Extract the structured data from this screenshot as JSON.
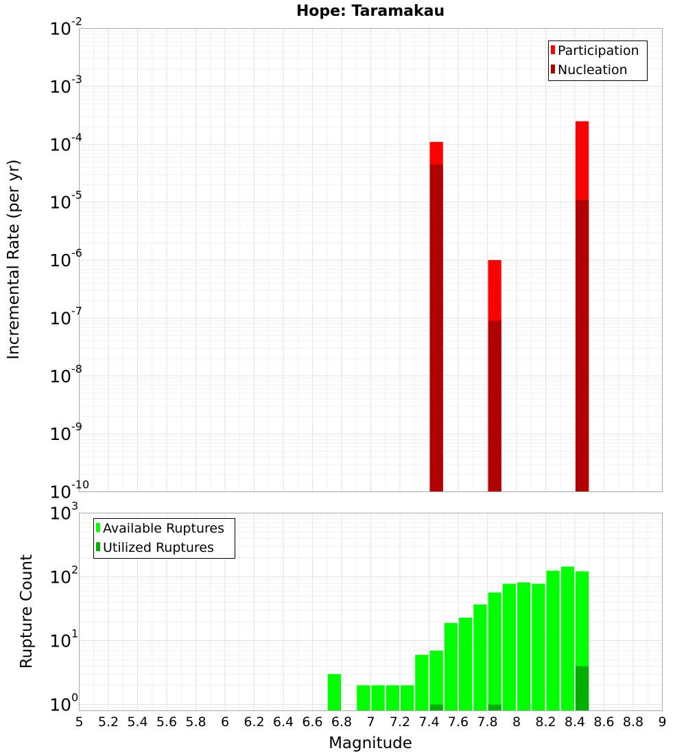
{
  "chart_data": [
    {
      "type": "bar",
      "title": "Hope: Taramakau",
      "xlabel": "Magnitude",
      "ylabel": "Incremental Rate (per yr)",
      "xlim": [
        5,
        9
      ],
      "ylim": [
        1e-10,
        0.01
      ],
      "yscale": "log",
      "grid": true,
      "legend_position": "top-right",
      "x_ticks": [
        "5",
        "5.2",
        "5.4",
        "5.6",
        "5.8",
        "6",
        "6.2",
        "6.4",
        "6.6",
        "6.8",
        "7",
        "7.2",
        "7.4",
        "7.6",
        "7.8",
        "8",
        "8.2",
        "8.4",
        "8.6",
        "8.8",
        "9"
      ],
      "y_ticks": [
        {
          "base": "10",
          "exp": "-10"
        },
        {
          "base": "10",
          "exp": "-9"
        },
        {
          "base": "10",
          "exp": "-8"
        },
        {
          "base": "10",
          "exp": "-7"
        },
        {
          "base": "10",
          "exp": "-6"
        },
        {
          "base": "10",
          "exp": "-5"
        },
        {
          "base": "10",
          "exp": "-4"
        },
        {
          "base": "10",
          "exp": "-3"
        },
        {
          "base": "10",
          "exp": "-2"
        }
      ],
      "bin_width": 0.1,
      "series": [
        {
          "name": "Participation",
          "color": "#ff0000",
          "x": [
            7.45,
            7.85,
            8.45
          ],
          "values": [
            0.00011,
            1e-06,
            0.00025
          ]
        },
        {
          "name": "Nucleation",
          "color": "#b00000",
          "x": [
            7.45,
            7.85,
            8.45
          ],
          "values": [
            4.5e-05,
            9e-08,
            1.1e-05
          ]
        }
      ]
    },
    {
      "type": "bar",
      "xlabel": "Magnitude",
      "ylabel": "Rupture Count",
      "xlim": [
        5,
        9
      ],
      "ylim": [
        0.8,
        1000
      ],
      "yscale": "log",
      "grid": true,
      "legend_position": "top-left",
      "x_ticks": [
        "5",
        "5.2",
        "5.4",
        "5.6",
        "5.8",
        "6",
        "6.2",
        "6.4",
        "6.6",
        "6.8",
        "7",
        "7.2",
        "7.4",
        "7.6",
        "7.8",
        "8",
        "8.2",
        "8.4",
        "8.6",
        "8.8",
        "9"
      ],
      "y_ticks": [
        {
          "base": "10",
          "exp": "0"
        },
        {
          "base": "10",
          "exp": "1"
        },
        {
          "base": "10",
          "exp": "2"
        },
        {
          "base": "10",
          "exp": "3"
        }
      ],
      "bin_width": 0.1,
      "series": [
        {
          "name": "Available Ruptures",
          "color": "#00ff00",
          "x": [
            6.75,
            6.95,
            7.05,
            7.15,
            7.25,
            7.35,
            7.45,
            7.55,
            7.65,
            7.75,
            7.85,
            7.95,
            8.05,
            8.15,
            8.25,
            8.35,
            8.45
          ],
          "values": [
            3,
            2,
            2,
            2,
            2,
            6,
            7,
            19,
            23,
            37,
            57,
            78,
            82,
            78,
            125,
            145,
            122
          ]
        },
        {
          "name": "Utilized Ruptures",
          "color": "#00b000",
          "x": [
            7.45,
            7.85,
            8.45
          ],
          "values": [
            1,
            1,
            4
          ]
        }
      ]
    }
  ]
}
